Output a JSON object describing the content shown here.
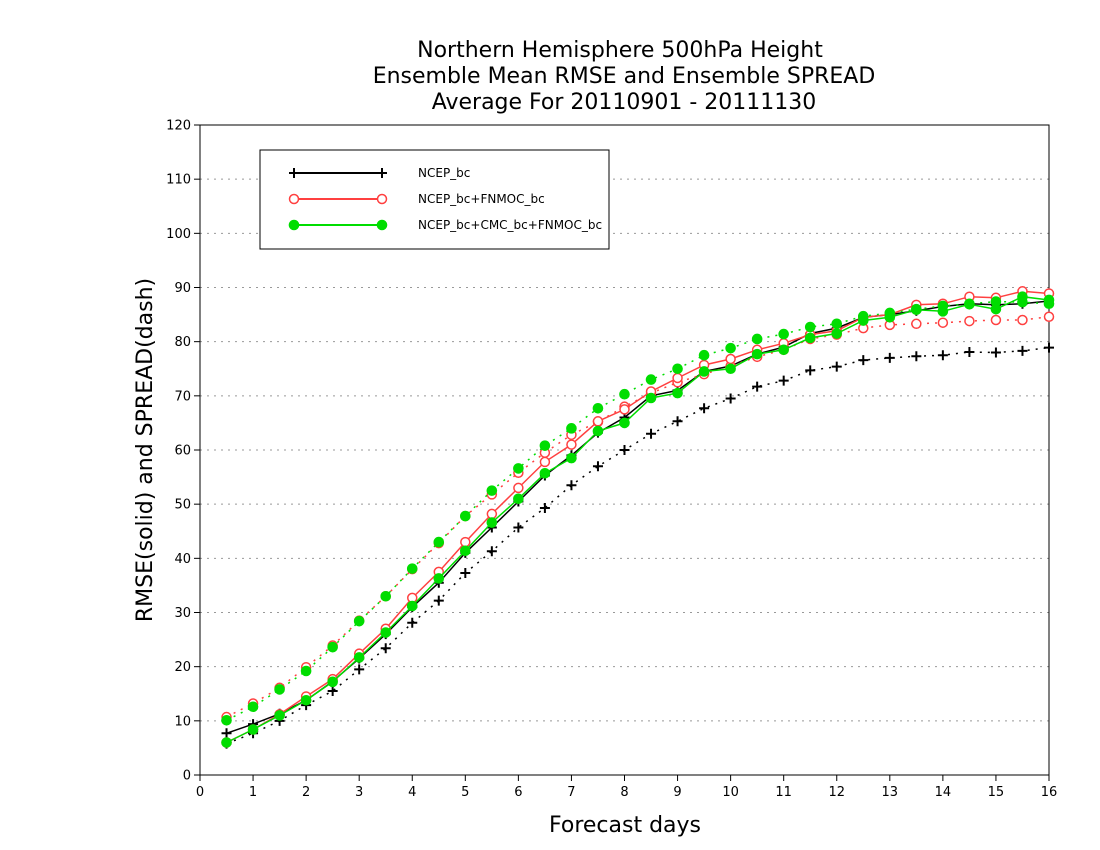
{
  "chart_data": {
    "type": "line",
    "title_lines": [
      "Northern Hemisphere 500hPa Height",
      "Ensemble Mean RMSE and Ensemble SPREAD",
      "Average For 20110901 - 20111130"
    ],
    "xlabel": "Forecast days",
    "ylabel": "RMSE(solid) and SPREAD(dash)",
    "xlim": [
      0,
      16
    ],
    "ylim": [
      0,
      120
    ],
    "xticks": [
      0,
      1,
      2,
      3,
      4,
      5,
      6,
      7,
      8,
      9,
      10,
      11,
      12,
      13,
      14,
      15,
      16
    ],
    "yticks": [
      0,
      10,
      20,
      30,
      40,
      50,
      60,
      70,
      80,
      90,
      100,
      110,
      120
    ],
    "grid": "horizontal dotted",
    "legend_position": "top-left",
    "x": [
      0.5,
      1,
      1.5,
      2,
      2.5,
      3,
      3.5,
      4,
      4.5,
      5,
      5.5,
      6,
      6.5,
      7,
      7.5,
      8,
      8.5,
      9,
      9.5,
      10,
      10.5,
      11,
      11.5,
      12,
      12.5,
      13,
      13.5,
      14,
      14.5,
      15,
      15.5,
      16
    ],
    "series": [
      {
        "name": "NCEP_bc",
        "color": "#000000",
        "marker": "plus",
        "rmse": [
          7.7,
          9.4,
          11.3,
          13.8,
          17.3,
          21.5,
          26.0,
          31.0,
          35.5,
          41.0,
          45.7,
          50.5,
          55.3,
          59.0,
          63.2,
          66.0,
          70.0,
          71.0,
          74.5,
          75.5,
          77.7,
          79.0,
          81.5,
          82.5,
          84.5,
          85.0,
          85.7,
          86.5,
          87.0,
          86.8,
          87.0,
          87.5
        ],
        "spread": [
          5.8,
          7.7,
          10.0,
          12.9,
          15.5,
          19.5,
          23.4,
          28.1,
          32.2,
          37.3,
          41.3,
          45.7,
          49.3,
          53.5,
          57.0,
          60.0,
          63.0,
          65.3,
          67.7,
          69.5,
          71.7,
          72.8,
          74.7,
          75.4,
          76.6,
          77.0,
          77.3,
          77.5,
          78.1,
          78.0,
          78.3,
          78.9
        ]
      },
      {
        "name": "NCEP_bc+FNMOC_bc",
        "color": "#ff4040",
        "marker": "open-circle",
        "rmse": [
          6.0,
          8.4,
          11.2,
          14.5,
          17.7,
          22.4,
          27.0,
          32.7,
          37.5,
          43.0,
          48.2,
          53.0,
          57.8,
          61.0,
          65.3,
          67.5,
          70.8,
          73.3,
          75.7,
          76.8,
          78.5,
          79.7,
          81.3,
          82.0,
          84.5,
          85.0,
          86.8,
          87.0,
          88.3,
          88.1,
          89.3,
          88.9
        ],
        "spread": [
          10.7,
          13.2,
          16.1,
          19.9,
          23.9,
          28.5,
          33.0,
          38.0,
          42.8,
          47.8,
          51.8,
          55.8,
          59.5,
          62.8,
          65.2,
          68.0,
          70.5,
          72.5,
          74.0,
          75.5,
          77.2,
          78.5,
          80.5,
          81.3,
          82.5,
          83.1,
          83.3,
          83.5,
          83.8,
          84.0,
          84.0,
          84.6
        ]
      },
      {
        "name": "NCEP_bc+CMC_bc+FNMOC_bc",
        "color": "#00dd00",
        "marker": "filled-circle",
        "rmse": [
          6.0,
          8.4,
          11.0,
          13.8,
          17.2,
          21.7,
          26.3,
          31.2,
          36.3,
          41.4,
          46.6,
          51.0,
          55.7,
          58.5,
          63.5,
          65.0,
          69.6,
          70.5,
          74.5,
          75.0,
          77.7,
          78.5,
          80.7,
          81.5,
          83.9,
          84.5,
          85.9,
          85.6,
          86.9,
          86.0,
          88.3,
          87.7
        ],
        "spread": [
          10.1,
          12.6,
          15.8,
          19.2,
          23.6,
          28.4,
          33.0,
          38.1,
          43.0,
          47.8,
          52.5,
          56.6,
          60.8,
          64.0,
          67.7,
          70.3,
          73.0,
          75.0,
          77.5,
          78.8,
          80.5,
          81.4,
          82.7,
          83.3,
          84.7,
          85.3,
          86.0,
          86.6,
          87.0,
          87.4,
          87.3,
          87.0
        ]
      }
    ]
  }
}
